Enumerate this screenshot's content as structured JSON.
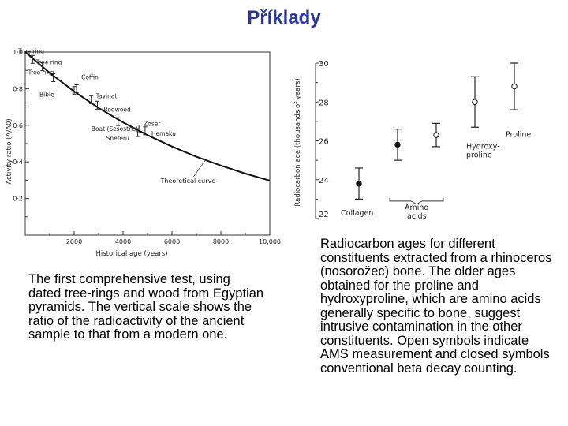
{
  "title": "Příklady",
  "captions": {
    "left": "The first comprehensive test, using dated tree-rings and wood from Egyptian pyramids. The vertical scale shows the ratio of the radioactivity of the ancient sample to that from a modern one.",
    "right": "Radiocarbon ages for different constituents extracted from a rhinoceros (nosorožec) bone. The older ages obtained for the proline and hydroxyproline, which are amino acids generally specific to bone, suggest intrusive contamination in the other constituents. Open symbols indicate AMS measurement and closed symbols conventional beta decay counting."
  },
  "chart_data": [
    {
      "type": "line",
      "xlabel": "Historical age (years)",
      "ylabel": "Activity ratio (A/A0)",
      "xlim": [
        0,
        10000
      ],
      "ylim": [
        0,
        1.0
      ],
      "x_ticks": [
        "2000",
        "4000",
        "6000",
        "8000",
        "10,000"
      ],
      "x_tick_values": [
        2000,
        4000,
        6000,
        8000,
        10000
      ],
      "y_ticks": [
        "1·0",
        "0·8",
        "0·6",
        "0·4",
        "0·2"
      ],
      "y_tick_values": [
        1.0,
        0.8,
        0.6,
        0.4,
        0.2
      ],
      "curve": {
        "name": "Theoretical curve",
        "x": [
          0,
          1000,
          2000,
          3000,
          4000,
          5000,
          6000,
          7000,
          8000,
          9000,
          10000
        ],
        "y": [
          1.0,
          0.886,
          0.785,
          0.695,
          0.616,
          0.546,
          0.484,
          0.428,
          0.38,
          0.336,
          0.298
        ]
      },
      "samples": [
        {
          "label": "Tree ring",
          "x": 300,
          "y": 0.96
        },
        {
          "label": "Tree ring",
          "x": 700,
          "y": 0.92
        },
        {
          "label": "Tree ring",
          "x": 1150,
          "y": 0.86
        },
        {
          "label": "Bible",
          "x": 2000,
          "y": 0.79
        },
        {
          "label": "Coffin",
          "x": 2100,
          "y": 0.8
        },
        {
          "label": "Tayinat",
          "x": 2700,
          "y": 0.74
        },
        {
          "label": "Redwood",
          "x": 2950,
          "y": 0.71
        },
        {
          "label": "Boat (Sesostris)",
          "x": 3800,
          "y": 0.62
        },
        {
          "label": "Zoser",
          "x": 4650,
          "y": 0.58
        },
        {
          "label": "Sneferu",
          "x": 4600,
          "y": 0.56
        },
        {
          "label": "Hemaka",
          "x": 4900,
          "y": 0.57
        }
      ]
    },
    {
      "type": "scatter",
      "ylabel": "Radiocarbon age (thousands of years)",
      "ylim": [
        22,
        30
      ],
      "y_ticks": [
        "30",
        "28",
        "26",
        "24",
        "22"
      ],
      "y_tick_values": [
        30,
        28,
        26,
        24,
        22
      ],
      "points": [
        {
          "label": "Collagen",
          "y": 23.8,
          "err": 0.8,
          "open": false
        },
        {
          "label": "Amino acids",
          "y": 25.8,
          "err": 0.8,
          "open": false
        },
        {
          "label": "Amino acids",
          "y": 26.3,
          "err": 0.6,
          "open": true
        },
        {
          "label": "Hydroxyproline",
          "y": 28.0,
          "err": 1.3,
          "open": true
        },
        {
          "label": "Proline",
          "y": 28.8,
          "err": 1.2,
          "open": true
        }
      ],
      "annotations": {
        "collagen": "Collagen",
        "amino1": "Amino",
        "amino2": "acids",
        "hydroxy1": "Hydroxy-",
        "hydroxy2": "proline",
        "proline": "Proline"
      }
    }
  ]
}
